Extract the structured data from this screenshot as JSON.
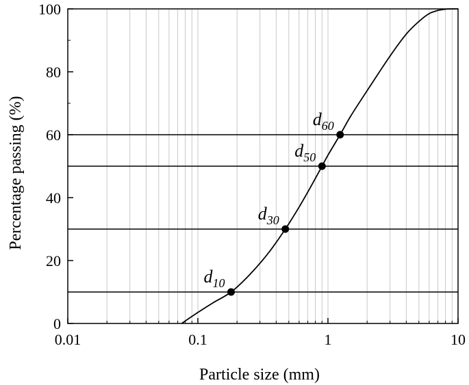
{
  "chart_data": {
    "type": "line",
    "xlabel": "Particle size (mm)",
    "ylabel": "Percentage passing (%)",
    "x_scale": "log",
    "xlim": [
      0.01,
      10
    ],
    "ylim": [
      0,
      100
    ],
    "x_ticks": [
      {
        "value": 0.01,
        "label": "0.01"
      },
      {
        "value": 0.1,
        "label": "0.1"
      },
      {
        "value": 1,
        "label": "1"
      },
      {
        "value": 10,
        "label": "10"
      }
    ],
    "y_ticks": [
      {
        "value": 0,
        "label": "0"
      },
      {
        "value": 20,
        "label": "20"
      },
      {
        "value": 40,
        "label": "40"
      },
      {
        "value": 60,
        "label": "60"
      },
      {
        "value": 80,
        "label": "80"
      },
      {
        "value": 100,
        "label": "100"
      }
    ],
    "grid": "log minor vertical gridlines",
    "reference_lines_y": [
      10,
      30,
      50,
      60
    ],
    "series": [
      {
        "x": [
          0.075,
          0.1,
          0.13,
          0.18,
          0.25,
          0.35,
          0.47,
          0.6,
          0.75,
          0.9,
          1.0,
          1.24,
          1.5,
          2.0,
          3.0,
          4.0,
          5.0,
          6.0,
          7.0,
          8.0,
          9.0,
          10.0
        ],
        "y": [
          0,
          3.5,
          6.5,
          10,
          15.5,
          22.5,
          30,
          37,
          44,
          50,
          53.5,
          60,
          66,
          74,
          85,
          92,
          96,
          98.5,
          99.5,
          99.9,
          100,
          100
        ]
      }
    ],
    "markers": [
      {
        "name": "d",
        "sub": "10",
        "x": 0.18,
        "y": 10
      },
      {
        "name": "d",
        "sub": "30",
        "x": 0.47,
        "y": 30
      },
      {
        "name": "d",
        "sub": "50",
        "x": 0.9,
        "y": 50
      },
      {
        "name": "d",
        "sub": "60",
        "x": 1.24,
        "y": 60
      }
    ]
  }
}
